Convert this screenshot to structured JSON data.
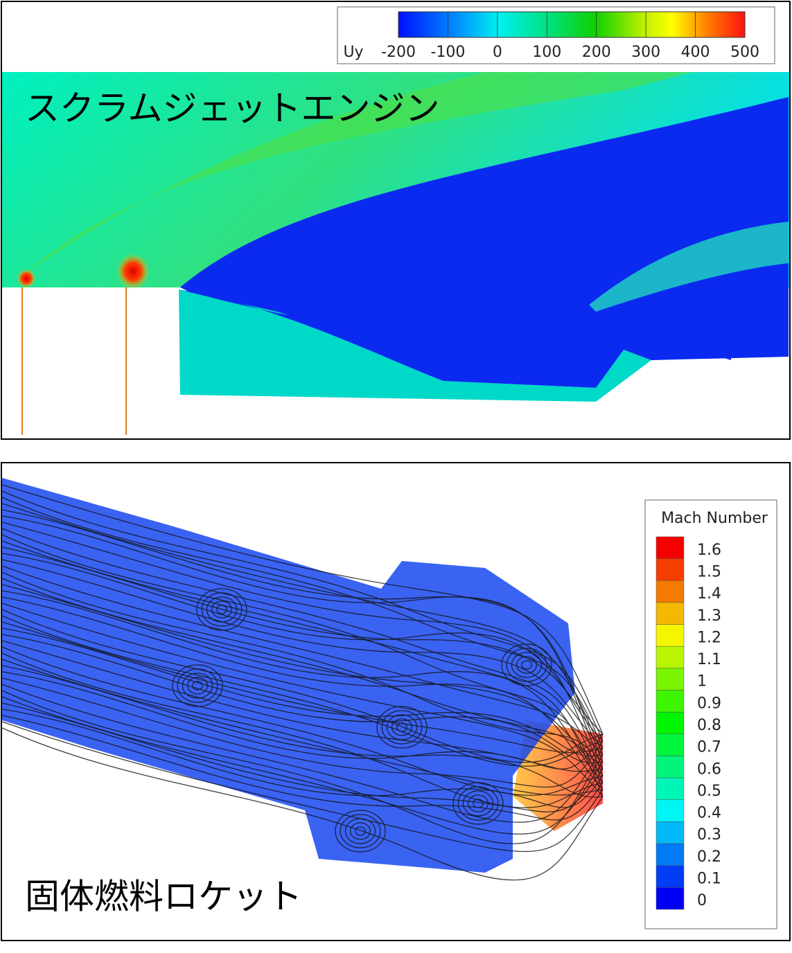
{
  "top_panel": {
    "title": "スクラムジェットエンジン",
    "colorbar": {
      "label": "Uy",
      "ticks": [
        -200,
        -100,
        0,
        100,
        200,
        300,
        400,
        500
      ]
    }
  },
  "bottom_panel": {
    "title": "固体燃料ロケット",
    "legend": {
      "title": "Mach Number",
      "levels": [
        1.6,
        1.5,
        1.4,
        1.3,
        1.2,
        1.1,
        1,
        0.9,
        0.8,
        0.7,
        0.6,
        0.5,
        0.4,
        0.3,
        0.2,
        0.1,
        0
      ]
    }
  }
}
